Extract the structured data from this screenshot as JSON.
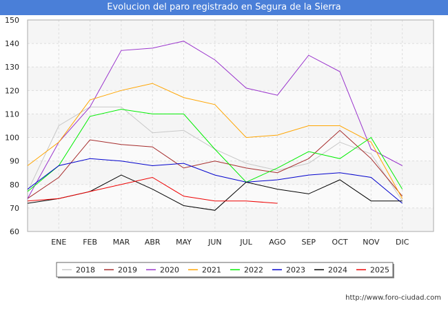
{
  "title": "Evolucion del paro registrado en Segura de la Sierra",
  "footer": "http://www.foro-ciudad.com",
  "colors": {
    "title_bar": "#4a7fd8",
    "plot_bg": "#f5f5f5",
    "grid": "#ffffff"
  },
  "chart_data": {
    "type": "line",
    "title": "Evolucion del paro registrado en Segura de la Sierra",
    "xlabel": "",
    "ylabel": "",
    "categories": [
      "",
      "ENE",
      "FEB",
      "MAR",
      "ABR",
      "MAY",
      "JUN",
      "JUL",
      "AGO",
      "SEP",
      "OCT",
      "NOV",
      "DIC"
    ],
    "ylim": [
      60,
      150
    ],
    "yticks": [
      60,
      70,
      80,
      90,
      100,
      110,
      120,
      130,
      140,
      150
    ],
    "grid": true,
    "legend_position": "bottom",
    "series": [
      {
        "name": "2018",
        "color": "#c8c8c8",
        "values": [
          77,
          105,
          113,
          113,
          102,
          103,
          95,
          89,
          86,
          89,
          98,
          93,
          73
        ]
      },
      {
        "name": "2019",
        "color": "#a52a2a",
        "values": [
          74,
          83,
          99,
          97,
          96,
          87,
          90,
          87,
          85,
          91,
          103,
          91,
          75
        ]
      },
      {
        "name": "2020",
        "color": "#9932cc",
        "values": [
          74,
          98,
          113,
          137,
          138,
          141,
          133,
          121,
          118,
          135,
          128,
          95,
          88
        ]
      },
      {
        "name": "2021",
        "color": "#ffa500",
        "values": [
          88,
          98,
          116,
          120,
          123,
          117,
          114,
          100,
          101,
          105,
          105,
          98,
          74
        ]
      },
      {
        "name": "2022",
        "color": "#00ee00",
        "values": [
          77,
          88,
          109,
          112,
          110,
          110,
          95,
          81,
          87,
          94,
          91,
          100,
          78
        ]
      },
      {
        "name": "2023",
        "color": "#0000cd",
        "values": [
          78,
          88,
          91,
          90,
          88,
          89,
          84,
          81,
          82,
          84,
          85,
          83,
          72
        ]
      },
      {
        "name": "2024",
        "color": "#000000",
        "values": [
          72,
          74,
          77,
          84,
          78,
          71,
          69,
          81,
          78,
          76,
          82,
          73,
          73
        ]
      },
      {
        "name": "2025",
        "color": "#ee0000",
        "values": [
          73,
          74,
          77,
          80,
          83,
          75,
          73,
          73,
          72,
          null,
          null,
          null,
          null
        ]
      }
    ]
  }
}
